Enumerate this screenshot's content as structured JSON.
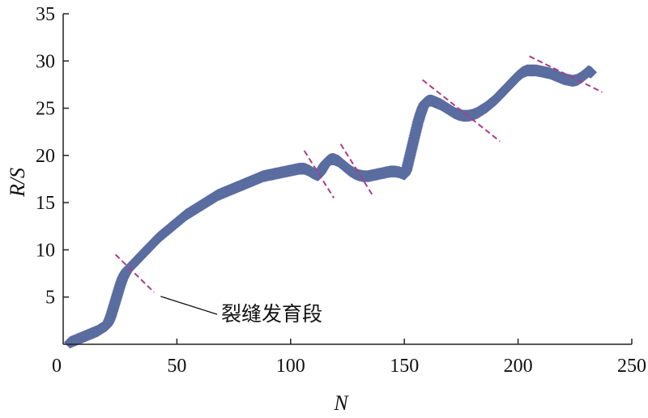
{
  "chart_data": {
    "type": "scatter",
    "title": "",
    "xlabel": "N",
    "ylabel": "R/S",
    "xlim": [
      0,
      250
    ],
    "ylim": [
      0,
      35
    ],
    "xticks": [
      0,
      50,
      100,
      150,
      200,
      250
    ],
    "yticks": [
      0,
      5,
      10,
      15,
      20,
      25,
      30,
      35
    ],
    "x_tick_labels": [
      "0",
      "50",
      "100",
      "150",
      "200",
      "250"
    ],
    "y_tick_labels": [
      "0",
      "5",
      "10",
      "15",
      "20",
      "25",
      "30",
      "35"
    ],
    "grid": false,
    "legend": "none",
    "marker": "diamond-hollow",
    "series_color": "#5a6da0",
    "dash_color": "#b03a8a",
    "series": [
      {
        "x": [
          3,
          5,
          7,
          9,
          11,
          13,
          15,
          17,
          19,
          20,
          21,
          22,
          23,
          24,
          25,
          26,
          27,
          28,
          30,
          32,
          34,
          36,
          38,
          40,
          42,
          44,
          46,
          48,
          50,
          52,
          54,
          56,
          58,
          60,
          62,
          64,
          66,
          68,
          70,
          72,
          74,
          76,
          78,
          80,
          82,
          84,
          86,
          88,
          90,
          92,
          94,
          96,
          98,
          100,
          102,
          104,
          106,
          108,
          110,
          112,
          113,
          114,
          115,
          116,
          117,
          118,
          119,
          120,
          121,
          122,
          124,
          126,
          128,
          130,
          132,
          134,
          136,
          138,
          140,
          142,
          144,
          146,
          148,
          150,
          151,
          152,
          153,
          154,
          155,
          156,
          157,
          158,
          159,
          160,
          161,
          162,
          163,
          164,
          165,
          166,
          168,
          170,
          172,
          174,
          176,
          178,
          180,
          182,
          184,
          186,
          188,
          190,
          192,
          194,
          196,
          198,
          200,
          202,
          204,
          206,
          208,
          210,
          212,
          214,
          216,
          218,
          220,
          222,
          224,
          226,
          228,
          230,
          231,
          232
        ],
        "y": [
          0.2,
          0.4,
          0.6,
          0.8,
          1.0,
          1.2,
          1.4,
          1.7,
          2.0,
          2.4,
          3.0,
          3.8,
          4.6,
          5.4,
          6.2,
          6.9,
          7.4,
          7.8,
          8.3,
          8.8,
          9.3,
          9.8,
          10.3,
          10.8,
          11.3,
          11.7,
          12.1,
          12.5,
          12.9,
          13.3,
          13.7,
          14.0,
          14.3,
          14.6,
          14.9,
          15.2,
          15.5,
          15.8,
          16.0,
          16.2,
          16.4,
          16.6,
          16.8,
          17.0,
          17.2,
          17.4,
          17.6,
          17.8,
          17.9,
          18.0,
          18.1,
          18.2,
          18.3,
          18.4,
          18.5,
          18.6,
          18.6,
          18.4,
          18.1,
          17.9,
          18.2,
          18.6,
          19.0,
          19.3,
          19.5,
          19.6,
          19.6,
          19.5,
          19.4,
          19.2,
          18.8,
          18.4,
          18.1,
          17.9,
          17.8,
          17.8,
          17.9,
          18.0,
          18.1,
          18.2,
          18.3,
          18.3,
          18.2,
          18.0,
          18.5,
          19.5,
          20.5,
          21.5,
          22.5,
          23.5,
          24.3,
          25.0,
          25.5,
          25.7,
          25.8,
          25.8,
          25.7,
          25.6,
          25.5,
          25.4,
          25.1,
          24.8,
          24.5,
          24.3,
          24.2,
          24.2,
          24.3,
          24.5,
          24.8,
          25.1,
          25.5,
          25.9,
          26.4,
          26.9,
          27.4,
          27.9,
          28.4,
          28.8,
          29.0,
          29.0,
          29.0,
          28.9,
          28.8,
          28.7,
          28.5,
          28.3,
          28.1,
          28.0,
          27.9,
          28.0,
          28.3,
          28.7,
          28.9,
          28.8
        ]
      }
    ],
    "fracture_markers": [
      {
        "x": [
          23,
          40
        ],
        "y": [
          9.5,
          5.5
        ]
      },
      {
        "x": [
          106,
          119
        ],
        "y": [
          20.5,
          15.5
        ]
      },
      {
        "x": [
          122,
          136
        ],
        "y": [
          21.2,
          15.8
        ]
      },
      {
        "x": [
          158,
          192
        ],
        "y": [
          28.0,
          21.5
        ]
      },
      {
        "x": [
          205,
          237
        ],
        "y": [
          30.5,
          26.7
        ]
      }
    ],
    "annotation": {
      "text": "裂缝发育段",
      "point": [
        40,
        5.5
      ]
    }
  }
}
